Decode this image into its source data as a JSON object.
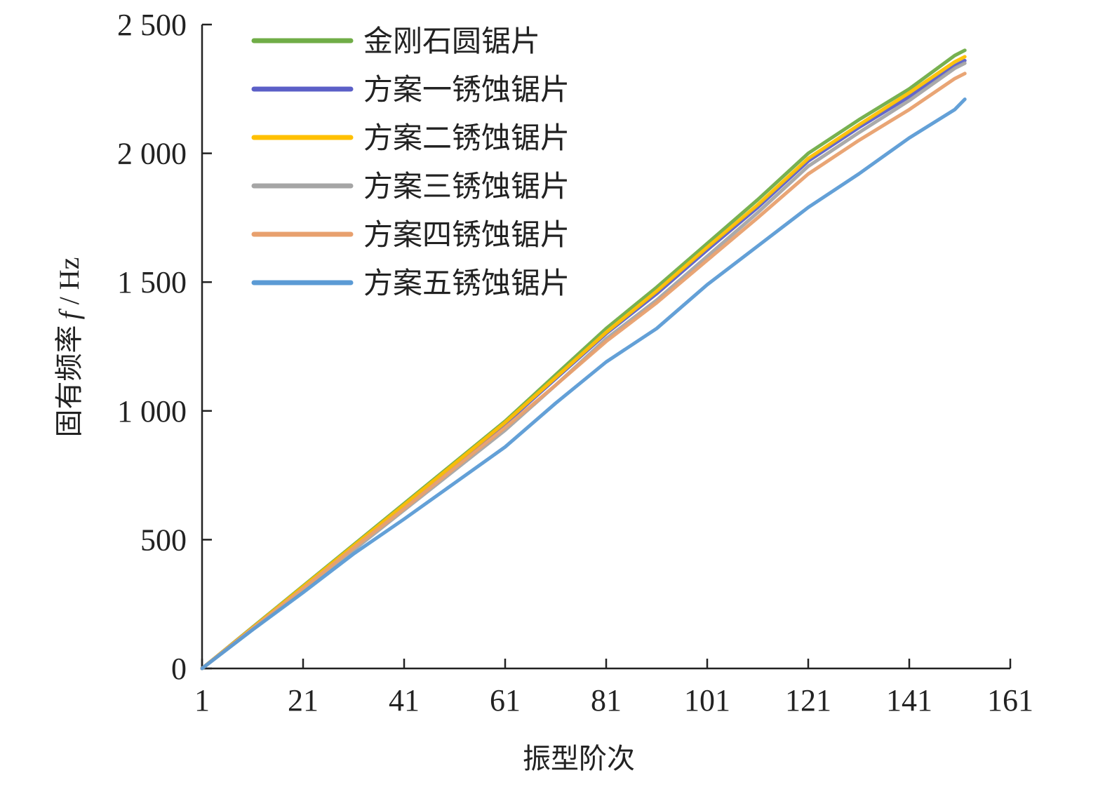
{
  "chart_data": {
    "type": "line",
    "xlabel": "振型阶次",
    "ylabel_prefix": "固有频率",
    "ylabel_var": "f",
    "ylabel_unit": " / Hz",
    "xlim": [
      1,
      161
    ],
    "ylim": [
      0,
      2500
    ],
    "x_ticks": [
      1,
      21,
      41,
      61,
      81,
      101,
      121,
      141,
      161
    ],
    "y_ticks": [
      0,
      500,
      1000,
      1500,
      2000,
      2500
    ],
    "y_tick_labels": [
      "0",
      "500",
      "1 000",
      "1 500",
      "2 000",
      "2 500"
    ],
    "grid": false,
    "legend_position": "top-left",
    "series": [
      {
        "name": "金刚石圆锯片",
        "color": "#70ad47",
        "x": [
          1,
          11,
          21,
          31,
          41,
          51,
          61,
          71,
          81,
          91,
          101,
          111,
          121,
          131,
          141,
          150,
          152
        ],
        "y": [
          0,
          160,
          320,
          480,
          640,
          800,
          960,
          1140,
          1320,
          1480,
          1650,
          1820,
          2000,
          2130,
          2250,
          2380,
          2400
        ]
      },
      {
        "name": "方案一锈蚀锯片",
        "color": "#5b5fc7",
        "x": [
          1,
          11,
          21,
          31,
          41,
          51,
          61,
          71,
          81,
          91,
          101,
          111,
          121,
          131,
          141,
          150,
          152
        ],
        "y": [
          0,
          158,
          316,
          474,
          632,
          790,
          950,
          1125,
          1300,
          1455,
          1625,
          1790,
          1970,
          2100,
          2220,
          2340,
          2360
        ]
      },
      {
        "name": "方案二锈蚀锯片",
        "color": "#ffc000",
        "x": [
          1,
          11,
          21,
          31,
          41,
          51,
          61,
          71,
          81,
          91,
          101,
          111,
          121,
          131,
          141,
          150,
          152
        ],
        "y": [
          0,
          158,
          317,
          476,
          635,
          795,
          955,
          1130,
          1305,
          1465,
          1635,
          1800,
          1980,
          2110,
          2235,
          2355,
          2375
        ]
      },
      {
        "name": "方案三锈蚀锯片",
        "color": "#a5a5a5",
        "x": [
          1,
          11,
          21,
          31,
          41,
          51,
          61,
          71,
          81,
          91,
          101,
          111,
          121,
          131,
          141,
          150,
          152
        ],
        "y": [
          0,
          152,
          305,
          460,
          615,
          770,
          925,
          1100,
          1280,
          1430,
          1600,
          1770,
          1950,
          2080,
          2205,
          2330,
          2350
        ]
      },
      {
        "name": "方案四锈蚀锯片",
        "color": "#e8a06e",
        "x": [
          1,
          11,
          21,
          31,
          41,
          51,
          61,
          71,
          81,
          91,
          101,
          111,
          121,
          131,
          141,
          150,
          152
        ],
        "y": [
          0,
          155,
          310,
          468,
          620,
          778,
          935,
          1100,
          1270,
          1420,
          1585,
          1750,
          1920,
          2050,
          2170,
          2290,
          2310
        ]
      },
      {
        "name": "方案五锈蚀锯片",
        "color": "#5b9bd5",
        "x": [
          1,
          11,
          21,
          31,
          41,
          51,
          61,
          71,
          81,
          91,
          101,
          111,
          121,
          131,
          141,
          150,
          152
        ],
        "y": [
          0,
          150,
          295,
          445,
          580,
          720,
          860,
          1030,
          1190,
          1320,
          1490,
          1640,
          1790,
          1920,
          2060,
          2170,
          2210
        ]
      }
    ]
  }
}
